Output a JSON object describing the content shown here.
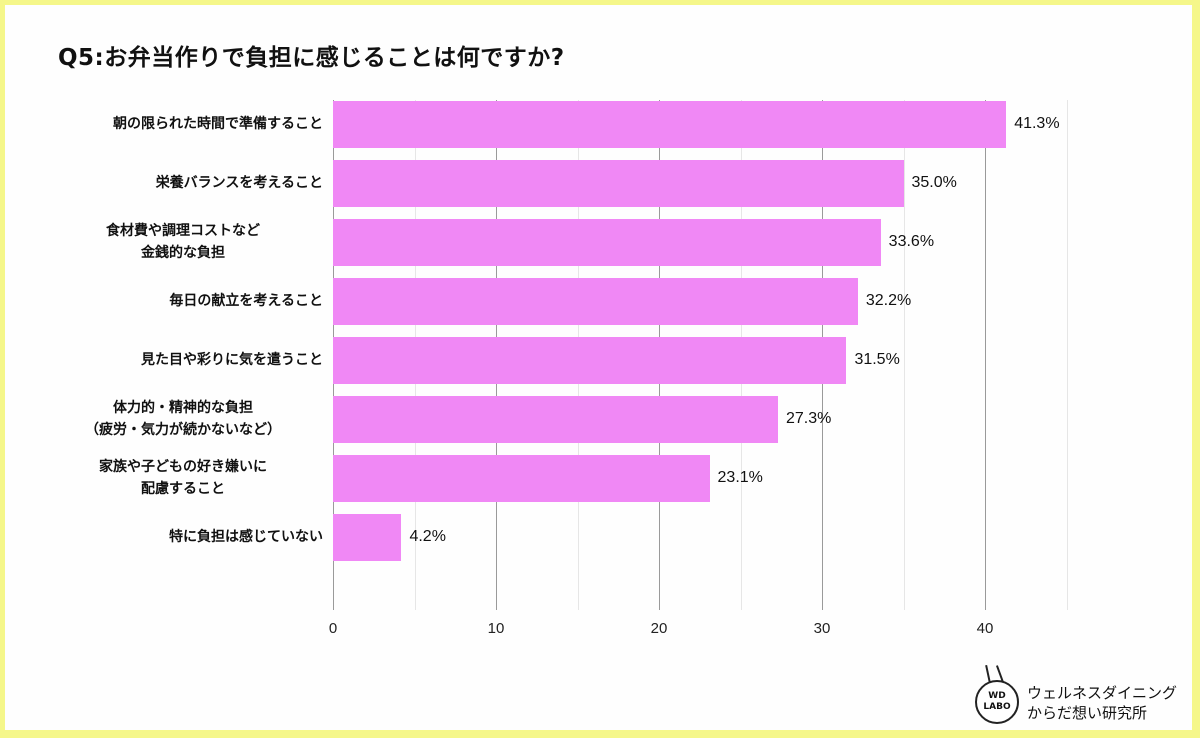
{
  "title": "Q5:お弁当作りで負担に感じることは何ですか?",
  "colors": {
    "bar": "#f088f5",
    "background": "#fefefe",
    "border": "#f5f78a"
  },
  "chart_data": {
    "type": "bar",
    "orientation": "horizontal",
    "title": "Q5:お弁当作りで負担に感じることは何ですか?",
    "categories": [
      "朝の限られた時間で準備すること",
      "栄養バランスを考えること",
      "食材費や調理コストなど\n金銭的な負担",
      "毎日の献立を考えること",
      "見た目や彩りに気を遣うこと",
      "体力的・精神的な負担\n（疲労・気力が続かないなど）",
      "家族や子どもの好き嫌いに\n配慮すること",
      "特に負担は感じていない"
    ],
    "values": [
      41.3,
      35.0,
      33.6,
      32.2,
      31.5,
      27.3,
      23.1,
      4.2
    ],
    "value_labels": [
      "41.3%",
      "35.0%",
      "33.6%",
      "32.2%",
      "31.5%",
      "27.3%",
      "23.1%",
      "4.2%"
    ],
    "xlabel": "",
    "ylabel": "",
    "xlim": [
      0,
      45
    ],
    "xticks": [
      "0",
      "10",
      "20",
      "30",
      "40"
    ],
    "grid": true,
    "legend": null
  },
  "logo": {
    "mark_line1": "WD",
    "mark_line2": "LABO",
    "text_line1": "ウェルネスダイニング",
    "text_line2": "からだ想い研究所"
  }
}
